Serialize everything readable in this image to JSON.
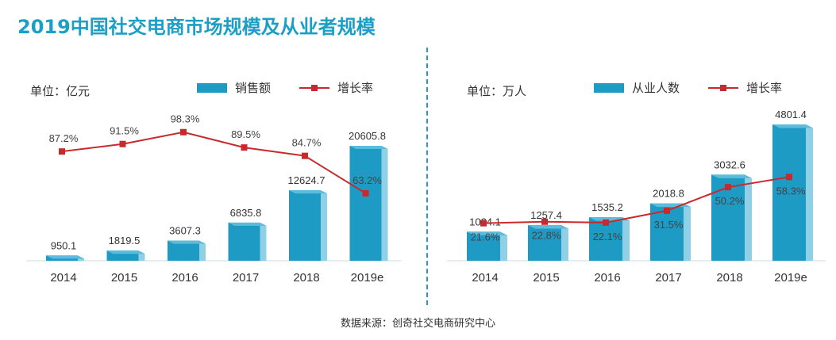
{
  "title": "2019中国社交电商市场规模及从业者规模",
  "source": "数据来源：创奇社交电商研究中心",
  "colors": {
    "bar": "#1e9bc4",
    "bar_side": "#8fd0e6",
    "bar_top": "#5cbcdc",
    "line": "#c8292c",
    "title": "#1a9fc6"
  },
  "chart_data": [
    {
      "type": "bar",
      "unit_label": "单位：亿元",
      "categories": [
        "2014",
        "2015",
        "2016",
        "2017",
        "2018",
        "2019e"
      ],
      "series": [
        {
          "name": "销售额",
          "type": "bar",
          "values": [
            950.1,
            1819.5,
            3607.3,
            6835.8,
            12624.7,
            20605.8
          ]
        },
        {
          "name": "增长率",
          "type": "line",
          "values": [
            87.2,
            91.5,
            98.3,
            89.5,
            84.7,
            63.2
          ],
          "labels": [
            "87.2%",
            "91.5%",
            "98.3%",
            "89.5%",
            "84.7%",
            "63.2%"
          ]
        }
      ],
      "bar_labels": [
        "950.1",
        "1819.5",
        "3607.3",
        "6835.8",
        "12624.7",
        "20605.8"
      ],
      "legend": "top"
    },
    {
      "type": "bar",
      "unit_label": "单位：万人",
      "categories": [
        "2014",
        "2015",
        "2016",
        "2017",
        "2018",
        "2019e"
      ],
      "series": [
        {
          "name": "从业人数",
          "type": "bar",
          "values": [
            1024.1,
            1257.4,
            1535.2,
            2018.8,
            3032.6,
            4801.4
          ]
        },
        {
          "name": "增长率",
          "type": "line",
          "values": [
            21.6,
            22.8,
            22.1,
            31.5,
            50.2,
            58.3
          ],
          "labels": [
            "21.6%",
            "22.8%",
            "22.1%",
            "31.5%",
            "50.2%",
            "58.3%"
          ]
        }
      ],
      "bar_labels": [
        "1024.1",
        "1257.4",
        "1535.2",
        "2018.8",
        "3032.6",
        "4801.4"
      ],
      "legend": "top"
    }
  ]
}
